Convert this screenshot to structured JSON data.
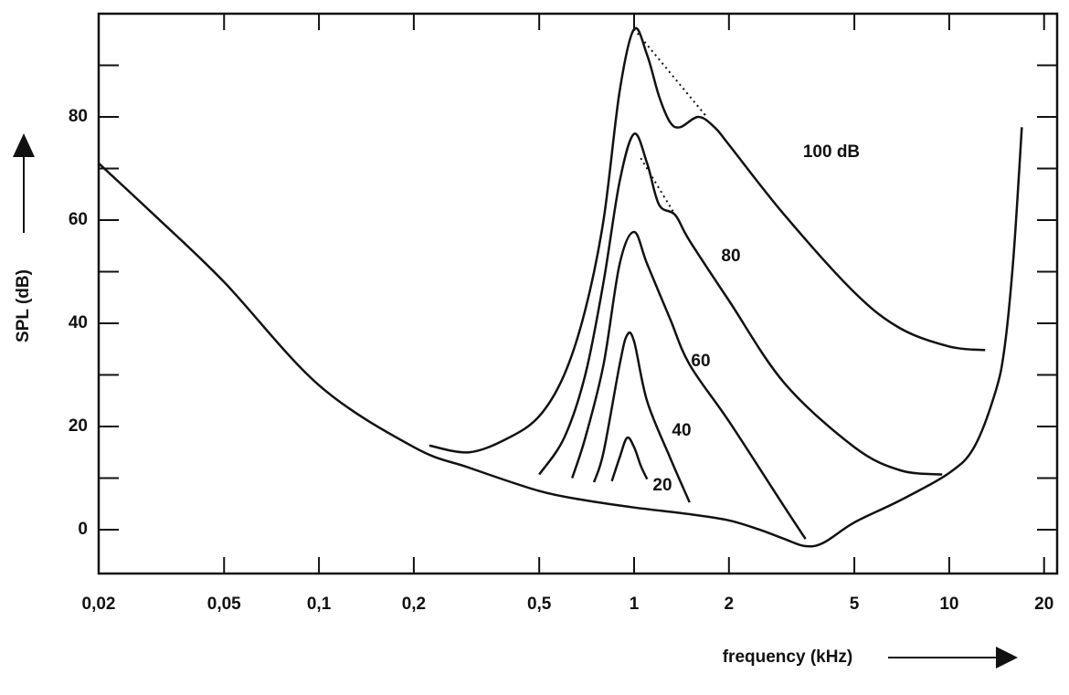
{
  "chart_data": {
    "type": "line",
    "x_label": "frequency (kHz)",
    "y_label": "SPL (dB)",
    "log_x": true,
    "xlim": [
      0.02,
      22
    ],
    "ylim": [
      -8.5,
      100
    ],
    "xticks": [
      {
        "value": 0.02,
        "label": "0,02"
      },
      {
        "value": 0.05,
        "label": "0,05"
      },
      {
        "value": 0.1,
        "label": "0,1"
      },
      {
        "value": 0.2,
        "label": "0,2"
      },
      {
        "value": 0.5,
        "label": "0,5"
      },
      1,
      2,
      5,
      10,
      20
    ],
    "yticks": [
      0,
      20,
      40,
      60,
      80
    ],
    "yminor": [
      10,
      30,
      50,
      70,
      90
    ],
    "color": "#111111",
    "series": [
      {
        "x": [
          0.02,
          0.03,
          0.05,
          0.1,
          0.2,
          0.3,
          0.5,
          0.7,
          1,
          1.5,
          2,
          2.5,
          3,
          3.5,
          4,
          5,
          7,
          10,
          12,
          14,
          15,
          16,
          17
        ],
        "values": [
          71,
          61,
          48,
          28,
          16,
          12,
          7.5,
          5.7,
          4.3,
          3,
          1.8,
          0,
          -1.8,
          -3.2,
          -2.5,
          1.4,
          5.7,
          11,
          16,
          26.6,
          35.5,
          53,
          78
        ]
      },
      {
        "name": "100 dB",
        "x": [
          0.224,
          0.3,
          0.4,
          0.5,
          0.6,
          0.7,
          0.8,
          0.9,
          1,
          1.1,
          1.2,
          1.3,
          1.4,
          1.6,
          1.8,
          2,
          3,
          5,
          7,
          10,
          13
        ],
        "values": [
          16.3,
          15,
          17.8,
          22,
          30,
          42.6,
          60,
          85,
          97,
          92,
          84,
          79,
          78,
          80,
          78,
          74.6,
          61,
          46,
          39,
          35.5,
          34.8
        ]
      },
      {
        "name": "80",
        "x": [
          0.5,
          0.6,
          0.7,
          0.8,
          0.9,
          1,
          1.1,
          1.2,
          1.35,
          1.5,
          2,
          3,
          5,
          7,
          9.5
        ],
        "values": [
          10.7,
          17.8,
          30,
          48,
          67.5,
          76.7,
          71,
          63,
          61,
          56,
          44.4,
          28.4,
          16,
          11.5,
          10.7
        ]
      },
      {
        "name": "60",
        "x": [
          0.636,
          0.7,
          0.8,
          0.9,
          1,
          1.1,
          1.3,
          1.5,
          2,
          3,
          3.5
        ],
        "values": [
          10,
          17.8,
          32,
          51.5,
          57.7,
          51.5,
          40.9,
          32,
          21,
          4.4,
          -1.8
        ]
      },
      {
        "name": "40",
        "x": [
          0.746,
          0.8,
          0.9,
          0.95,
          1,
          1.1,
          1.3,
          1.5
        ],
        "values": [
          9.2,
          15,
          32,
          37.7,
          36.5,
          24.9,
          14,
          5.3
        ]
      },
      {
        "name": "20",
        "x": [
          0.85,
          0.9,
          0.95,
          1,
          1.05,
          1.1
        ],
        "values": [
          9.4,
          14,
          17.8,
          16,
          12.4,
          9.8
        ]
      },
      {
        "dashed": true,
        "x": [
          1,
          1.7
        ],
        "values": [
          97,
          80
        ]
      },
      {
        "dashed": true,
        "x": [
          1.05,
          1.35
        ],
        "values": [
          72,
          61
        ]
      }
    ]
  }
}
